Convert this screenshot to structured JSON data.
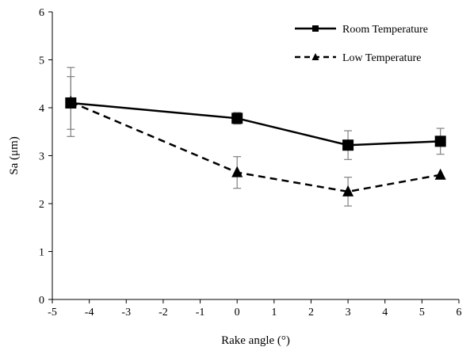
{
  "chart_data": {
    "type": "line",
    "title": "",
    "xlabel": "Rake angle (°)",
    "ylabel": "Sa (μm)",
    "xlim": [
      -5,
      6
    ],
    "ylim": [
      0,
      6
    ],
    "xticks": [
      -5,
      -4,
      -3,
      -2,
      -1,
      0,
      1,
      2,
      3,
      4,
      5,
      6
    ],
    "yticks": [
      0,
      1,
      2,
      3,
      4,
      5,
      6
    ],
    "xtick_labels": [
      "-5",
      "-4",
      "-3",
      "-2",
      "-1",
      "0",
      "1",
      "2",
      "3",
      "4",
      "5",
      "6"
    ],
    "ytick_labels": [
      "0",
      "1",
      "2",
      "3",
      "4",
      "5",
      "6"
    ],
    "grid": false,
    "legend_position": "top-right",
    "series": [
      {
        "name": "Room Temperature",
        "x": [
          -4.5,
          0,
          3,
          5.5
        ],
        "y": [
          4.1,
          3.78,
          3.22,
          3.3
        ],
        "error": [
          0.55,
          0.12,
          0.3,
          0.27
        ],
        "marker": "square",
        "line_style": "solid",
        "color": "#000000"
      },
      {
        "name": "Low Temperature",
        "x": [
          -4.5,
          0,
          3,
          5.5
        ],
        "y": [
          4.12,
          2.65,
          2.25,
          2.6
        ],
        "error": [
          0.72,
          0.33,
          0.3,
          0.0
        ],
        "marker": "triangle",
        "line_style": "dashed",
        "color": "#000000"
      }
    ],
    "error_bar_color": "#808080"
  }
}
